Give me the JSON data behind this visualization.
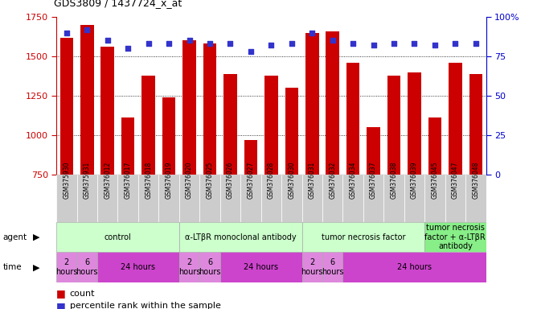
{
  "title": "GDS3809 / 1437724_x_at",
  "samples": [
    "GSM375930",
    "GSM375931",
    "GSM376012",
    "GSM376017",
    "GSM376018",
    "GSM376019",
    "GSM376020",
    "GSM376025",
    "GSM376026",
    "GSM376027",
    "GSM376028",
    "GSM376030",
    "GSM376031",
    "GSM376032",
    "GSM376034",
    "GSM376037",
    "GSM376038",
    "GSM376039",
    "GSM376045",
    "GSM376047",
    "GSM376048"
  ],
  "counts": [
    1620,
    1700,
    1560,
    1110,
    1380,
    1240,
    1600,
    1580,
    1390,
    970,
    1380,
    1300,
    1650,
    1660,
    1460,
    1050,
    1380,
    1400,
    1110,
    1460,
    1390
  ],
  "percentiles": [
    90,
    92,
    85,
    80,
    83,
    83,
    85,
    83,
    83,
    78,
    82,
    83,
    90,
    85,
    83,
    82,
    83,
    83,
    82,
    83,
    83
  ],
  "bar_color": "#cc0000",
  "dot_color": "#3333cc",
  "ylim_left": [
    750,
    1750
  ],
  "ylim_right": [
    0,
    100
  ],
  "yticks_left": [
    750,
    1000,
    1250,
    1500,
    1750
  ],
  "yticks_right": [
    0,
    25,
    50,
    75,
    100
  ],
  "agent_groups": [
    {
      "label": "control",
      "start": 0,
      "end": 6,
      "color": "#ccffcc"
    },
    {
      "label": "α-LTβR monoclonal antibody",
      "start": 6,
      "end": 12,
      "color": "#ccffcc"
    },
    {
      "label": "tumor necrosis factor",
      "start": 12,
      "end": 18,
      "color": "#ccffcc"
    },
    {
      "label": "tumor necrosis\nfactor + α-LTβR\nantibody",
      "start": 18,
      "end": 21,
      "color": "#88ee88"
    }
  ],
  "time_groups": [
    {
      "label": "2\nhours",
      "start": 0,
      "end": 1,
      "color": "#dd88dd"
    },
    {
      "label": "6\nhours",
      "start": 1,
      "end": 2,
      "color": "#dd88dd"
    },
    {
      "label": "24 hours",
      "start": 2,
      "end": 6,
      "color": "#cc44cc"
    },
    {
      "label": "2\nhours",
      "start": 6,
      "end": 7,
      "color": "#dd88dd"
    },
    {
      "label": "6\nhours",
      "start": 7,
      "end": 8,
      "color": "#dd88dd"
    },
    {
      "label": "24 hours",
      "start": 8,
      "end": 12,
      "color": "#cc44cc"
    },
    {
      "label": "2\nhours",
      "start": 12,
      "end": 13,
      "color": "#dd88dd"
    },
    {
      "label": "6\nhours",
      "start": 13,
      "end": 14,
      "color": "#dd88dd"
    },
    {
      "label": "24 hours",
      "start": 14,
      "end": 21,
      "color": "#cc44cc"
    }
  ],
  "background_color": "#ffffff",
  "left_axis_color": "#cc0000",
  "right_axis_color": "#0000cc",
  "tick_bg_color": "#cccccc"
}
